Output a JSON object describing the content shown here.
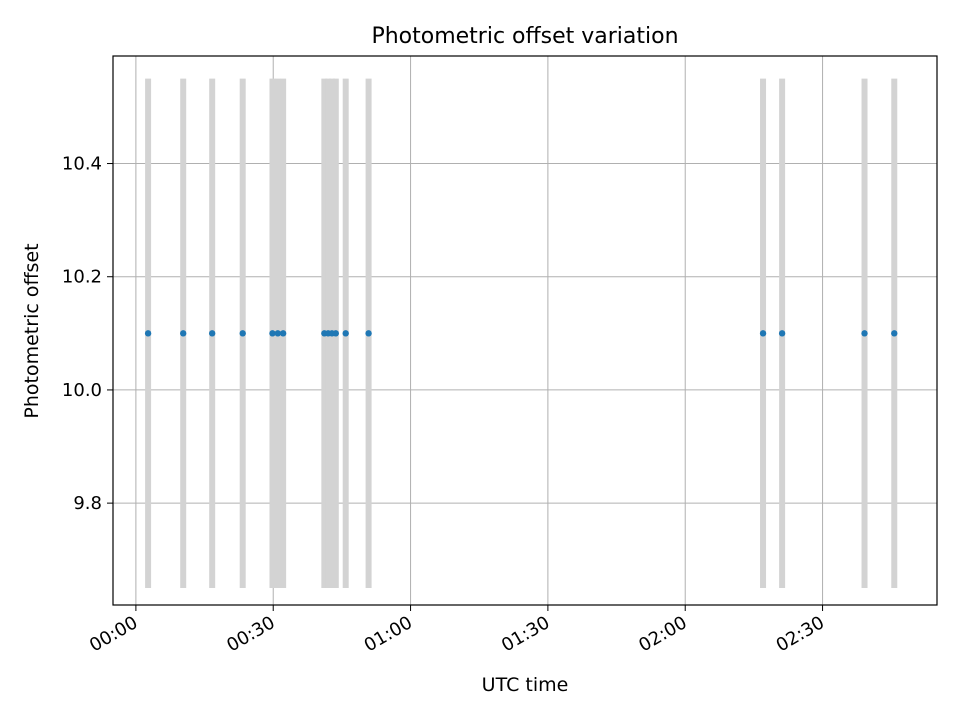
{
  "chart_data": {
    "type": "scatter",
    "title": "Photometric offset variation",
    "xlabel": "UTC time",
    "ylabel": "Photometric offset",
    "x_axis": {
      "kind": "time",
      "range": [
        "23:55",
        "02:55"
      ],
      "ticks": [
        "00:00",
        "00:30",
        "01:00",
        "01:30",
        "02:00",
        "02:30"
      ],
      "tick_label_rotation": "30"
    },
    "y_axis": {
      "range": [
        9.62,
        10.59
      ],
      "ticks": [
        9.8,
        10.0,
        10.2,
        10.4
      ]
    },
    "grid": true,
    "series": [
      {
        "marker_color": "#1f77b4",
        "error_bar_color": "#d3d3d3",
        "points": [
          {
            "x": "00:02:40",
            "y": 10.1,
            "err_low": 9.65,
            "err_high": 10.55
          },
          {
            "x": "00:10:20",
            "y": 10.1,
            "err_low": 9.65,
            "err_high": 10.55
          },
          {
            "x": "00:16:40",
            "y": 10.1,
            "err_low": 9.65,
            "err_high": 10.55
          },
          {
            "x": "00:23:20",
            "y": 10.1,
            "err_low": 9.65,
            "err_high": 10.55
          },
          {
            "x": "00:29:50",
            "y": 10.1,
            "err_low": 9.65,
            "err_high": 10.55
          },
          {
            "x": "00:31:00",
            "y": 10.1,
            "err_low": 9.65,
            "err_high": 10.55
          },
          {
            "x": "00:32:10",
            "y": 10.1,
            "err_low": 9.65,
            "err_high": 10.55
          },
          {
            "x": "00:41:10",
            "y": 10.1,
            "err_low": 9.65,
            "err_high": 10.55
          },
          {
            "x": "00:42:00",
            "y": 10.1,
            "err_low": 9.65,
            "err_high": 10.55
          },
          {
            "x": "00:42:50",
            "y": 10.1,
            "err_low": 9.65,
            "err_high": 10.55
          },
          {
            "x": "00:43:40",
            "y": 10.1,
            "err_low": 9.65,
            "err_high": 10.55
          },
          {
            "x": "00:45:50",
            "y": 10.1,
            "err_low": 9.65,
            "err_high": 10.55
          },
          {
            "x": "00:50:50",
            "y": 10.1,
            "err_low": 9.65,
            "err_high": 10.55
          },
          {
            "x": "02:17:00",
            "y": 10.1,
            "err_low": 9.65,
            "err_high": 10.55
          },
          {
            "x": "02:21:10",
            "y": 10.1,
            "err_low": 9.65,
            "err_high": 10.55
          },
          {
            "x": "02:39:10",
            "y": 10.1,
            "err_low": 9.65,
            "err_high": 10.55
          },
          {
            "x": "02:45:40",
            "y": 10.1,
            "err_low": 9.65,
            "err_high": 10.55
          }
        ]
      }
    ]
  }
}
